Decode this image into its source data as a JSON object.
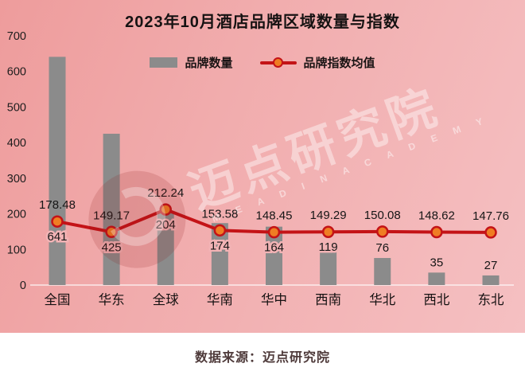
{
  "title": "2023年10月酒店品牌区域数量与指数",
  "legend": {
    "bars": "品牌数量",
    "line": "品牌指数均值"
  },
  "watermark": {
    "text": "迈点研究院",
    "subtext": "M E A D I N  A C A D E M Y"
  },
  "footer": {
    "text": "数据来源：迈点研究院"
  },
  "colors": {
    "bar": "#8b8b8b",
    "line": "#c41317",
    "dot_fill": "#ef7d23",
    "label": "#161616",
    "tick": "#1d1d1d",
    "axis_line": "rgba(255,255,255,0.75)",
    "label_halo": "#f2b3b5"
  },
  "chart_data": {
    "type": "bar",
    "title": "2023年10月酒店品牌区域数量与指数",
    "categories": [
      "全国",
      "华东",
      "全球",
      "华南",
      "华中",
      "西南",
      "华北",
      "西北",
      "东北"
    ],
    "series": [
      {
        "name": "品牌数量",
        "type": "bar",
        "values": [
          641,
          425,
          204,
          174,
          164,
          119,
          76,
          35,
          27
        ]
      },
      {
        "name": "品牌指数均值",
        "type": "line",
        "values": [
          178.48,
          149.17,
          212.24,
          153.58,
          148.45,
          149.29,
          150.08,
          148.62,
          147.76
        ]
      }
    ],
    "xlabel": "",
    "ylabel": "",
    "ylim": [
      0,
      700
    ],
    "yticks": [
      0,
      100,
      200,
      300,
      400,
      500,
      600,
      700
    ],
    "grid": false,
    "legend_position": "top"
  }
}
